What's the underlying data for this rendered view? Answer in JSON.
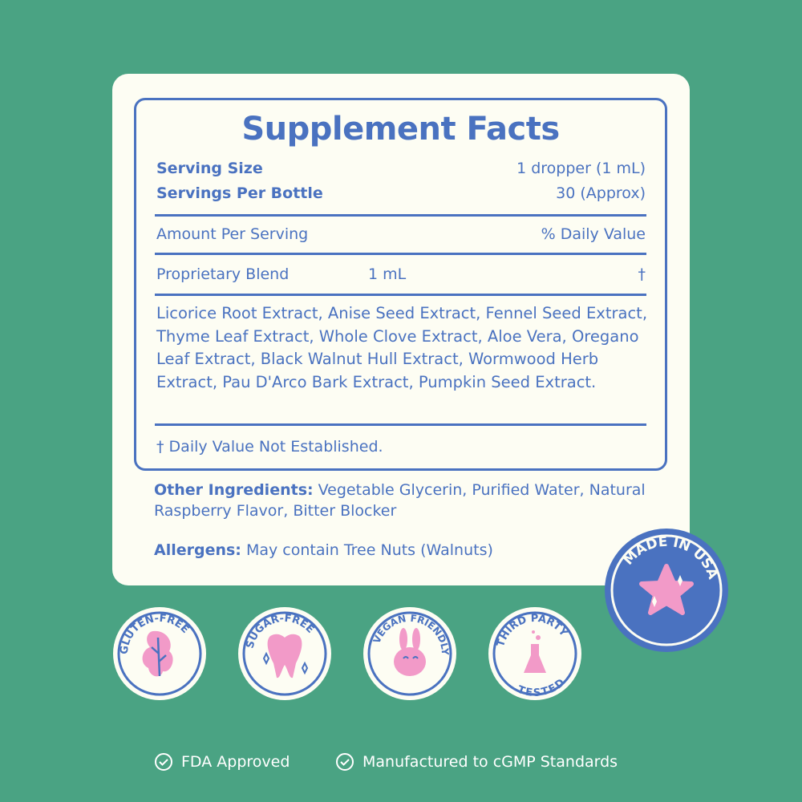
{
  "colors": {
    "background": "#4aa383",
    "card": "#fdfdf3",
    "text": "#4a72c0",
    "accent_pink": "#f29ac8"
  },
  "facts": {
    "title": "Supplement Facts",
    "serving_size_label": "Serving Size",
    "serving_size_value": "1 dropper (1 mL)",
    "servings_label": "Servings Per Bottle",
    "servings_value": "30 (Approx)",
    "amount_label": "Amount Per Serving",
    "dv_label": "% Daily Value",
    "blend_label": "Proprietary Blend",
    "blend_amount": "1 mL",
    "blend_dv": "†",
    "ingredients": "Licorice Root Extract, Anise Seed Extract, Fennel Seed Extract, Thyme Leaf Extract, Whole Clove Extract, Aloe Vera, Oregano Leaf Extract, Black Walnut Hull Extract, Wormwood Herb Extract,  Pau D'Arco Bark Extract, Pumpkin Seed Extract.",
    "footnote": "† Daily Value Not Established."
  },
  "other": {
    "label": "Other Ingredients:",
    "text": "Vegetable Glycerin, Purified Water, Natural Raspberry Flavor, Bitter Blocker"
  },
  "allergens": {
    "label": "Allergens:",
    "text": "May contain Tree Nuts (Walnuts)"
  },
  "badges": [
    {
      "label": "GLUTEN-FREE",
      "icon": "leaf-icon"
    },
    {
      "label": "SUGAR-FREE",
      "icon": "tooth-icon"
    },
    {
      "label": "VEGAN FRIENDLY",
      "icon": "bunny-icon"
    },
    {
      "label_top": "THIRD PARTY",
      "label_bottom": "TESTED",
      "icon": "flask-icon"
    }
  ],
  "made_in_usa": {
    "label": "MADE IN USA",
    "icon": "star-icon"
  },
  "footer": [
    {
      "label": "FDA Approved",
      "icon": "check-circle-icon"
    },
    {
      "label": "Manufactured to cGMP Standards",
      "icon": "check-circle-icon"
    }
  ]
}
